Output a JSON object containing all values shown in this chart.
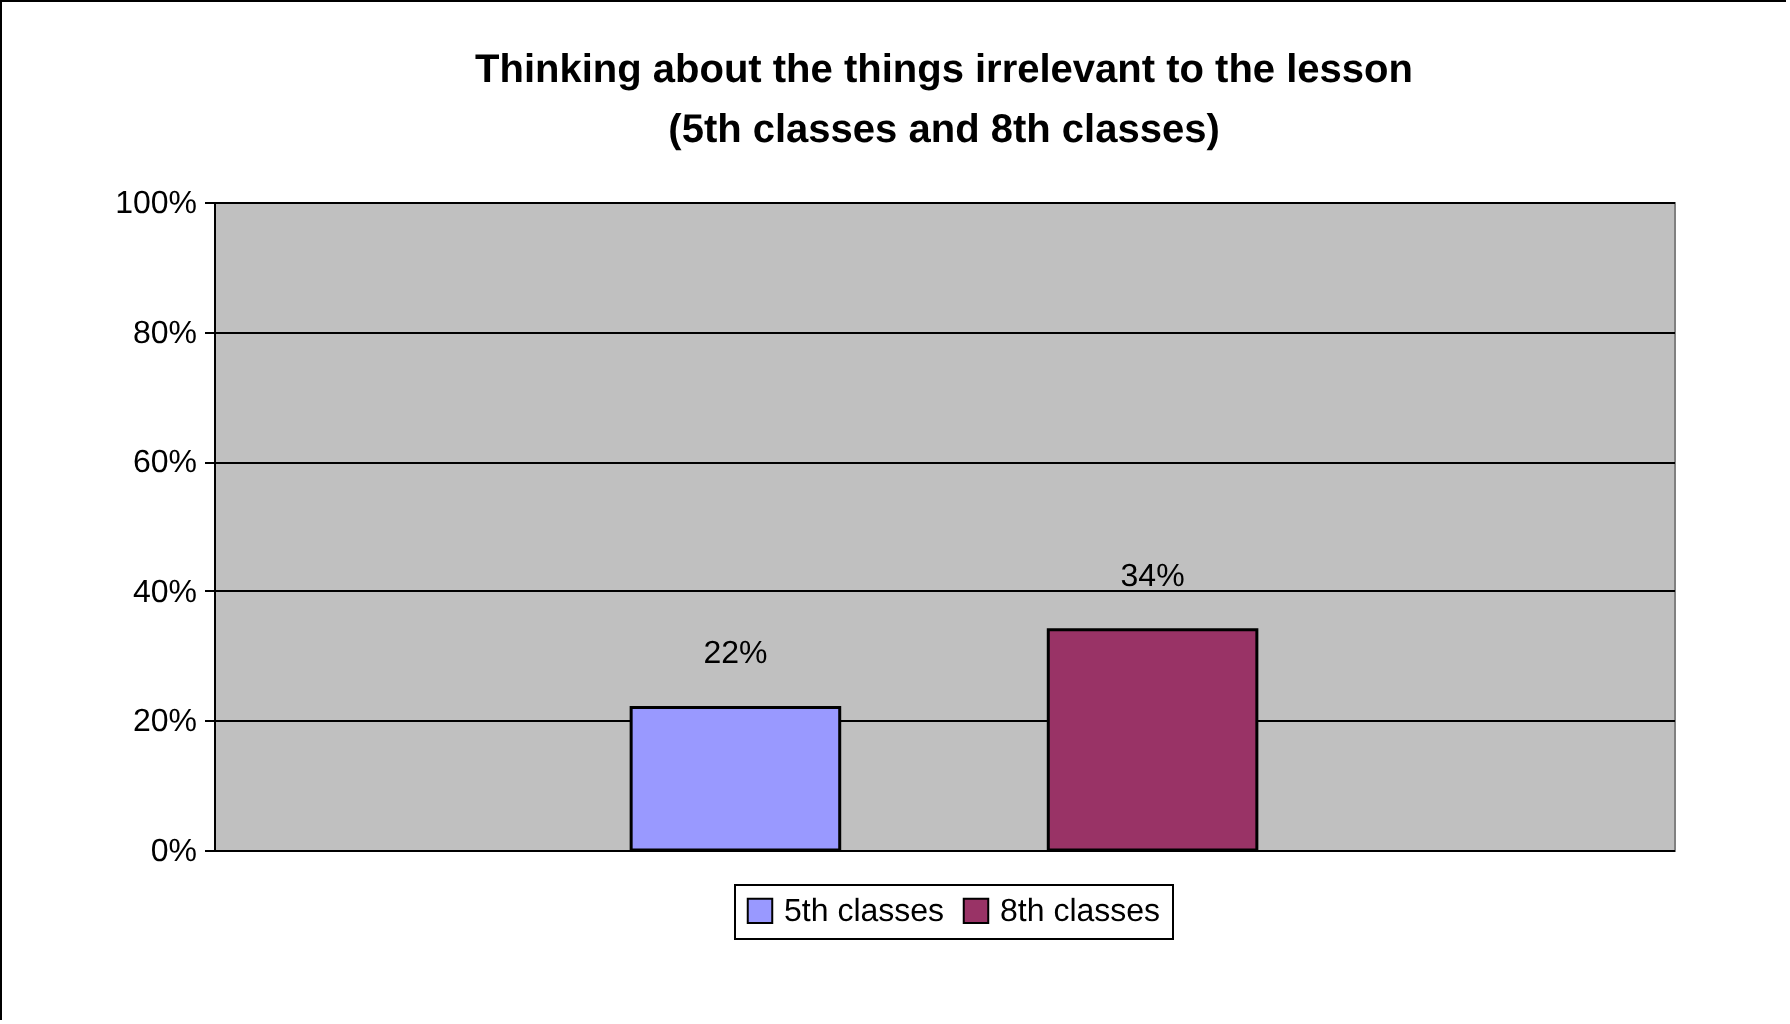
{
  "chart_data": {
    "type": "bar",
    "title": "Thinking about the things irrelevant to the lesson\n(5th classes and 8th classes)",
    "categories": [
      null
    ],
    "series": [
      {
        "name": "5th classes",
        "color": "#9999ff",
        "values": [
          22
        ]
      },
      {
        "name": "8th classes",
        "color": "#993366",
        "values": [
          34
        ]
      }
    ],
    "ylim": [
      0,
      100
    ],
    "yticks": [
      {
        "value": 0,
        "label": "0%"
      },
      {
        "value": 20,
        "label": "20%"
      },
      {
        "value": 40,
        "label": "40%"
      },
      {
        "value": 60,
        "label": "60%"
      },
      {
        "value": 80,
        "label": "80%"
      },
      {
        "value": 100,
        "label": "100%"
      }
    ],
    "value_labels": [
      "22%",
      "34%"
    ],
    "grid": "y",
    "legend": "bottom",
    "tick_labels": "y"
  }
}
